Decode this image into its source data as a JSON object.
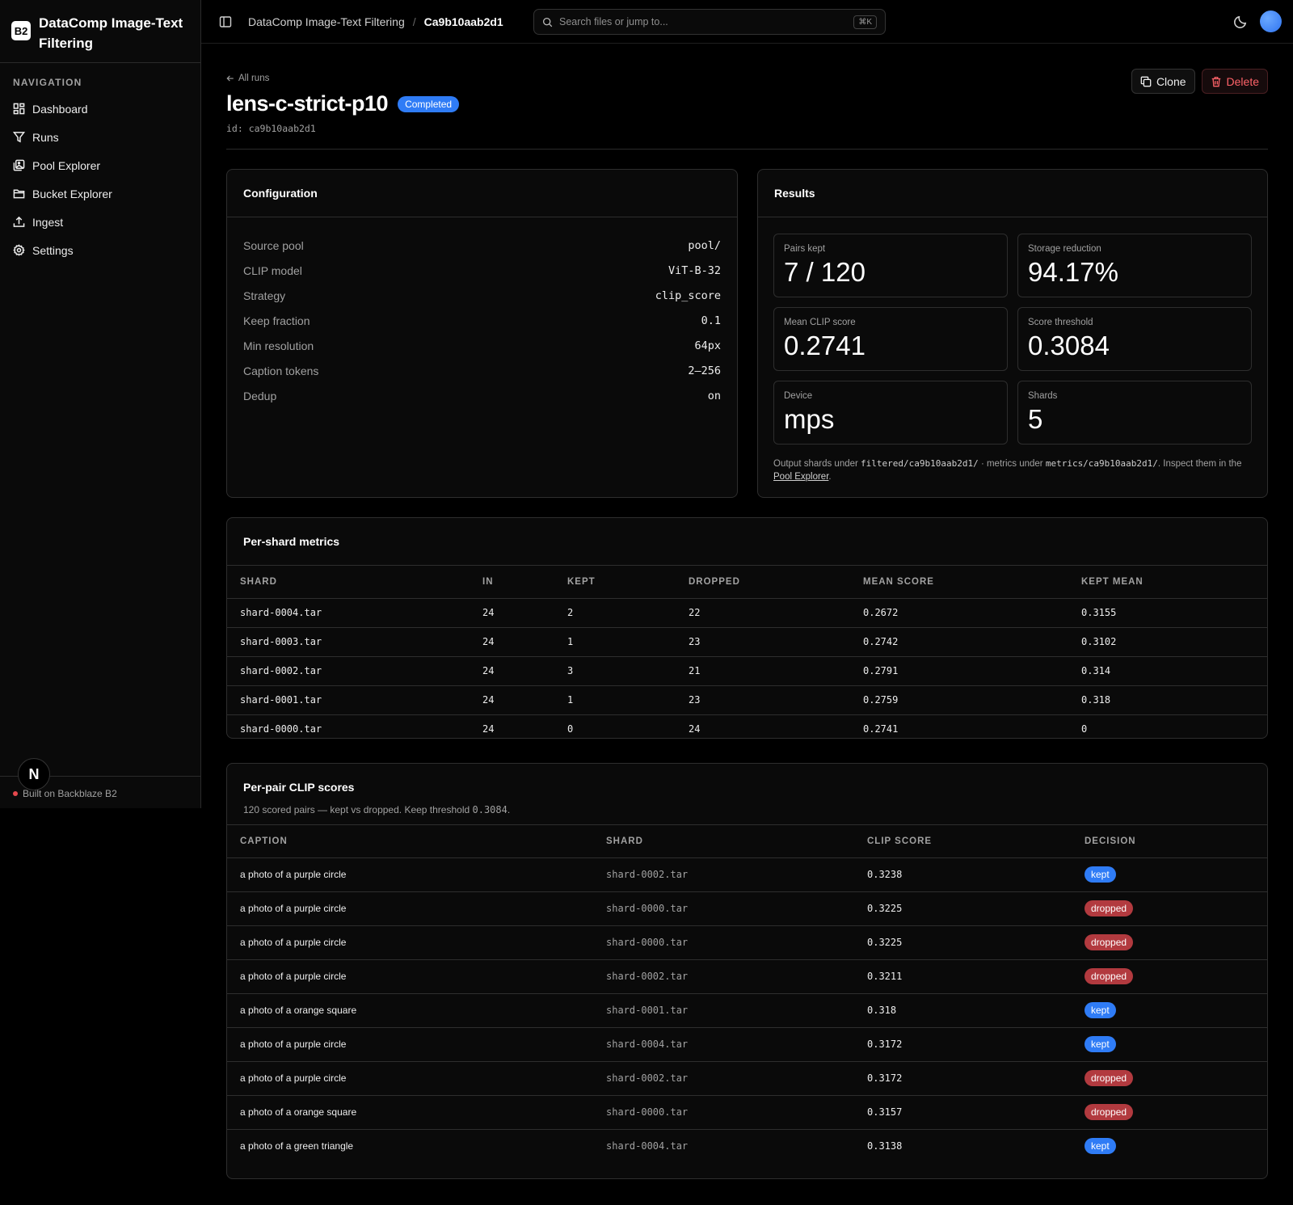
{
  "app": {
    "logo_text": "B2",
    "title": "DataComp Image-Text Filtering"
  },
  "sidebar": {
    "heading": "NAVIGATION",
    "items": [
      {
        "label": "Dashboard",
        "icon": "dashboard-icon"
      },
      {
        "label": "Runs",
        "icon": "filter-icon"
      },
      {
        "label": "Pool Explorer",
        "icon": "images-icon"
      },
      {
        "label": "Bucket Explorer",
        "icon": "folder-icon"
      },
      {
        "label": "Ingest",
        "icon": "upload-icon"
      },
      {
        "label": "Settings",
        "icon": "gear-icon"
      }
    ],
    "footer": "Built on Backblaze B2",
    "n_badge": "N"
  },
  "topbar": {
    "breadcrumb_root": "DataComp Image-Text Filtering",
    "breadcrumb_sep": "/",
    "breadcrumb_current": "Ca9b10aab2d1",
    "search_placeholder": "Search files or jump to...",
    "search_shortcut": "⌘K"
  },
  "run": {
    "back_label": "All runs",
    "name": "lens-c-strict-p10",
    "status": "Completed",
    "id_label": "id: ca9b10aab2d1",
    "clone_label": "Clone",
    "delete_label": "Delete"
  },
  "configuration": {
    "title": "Configuration",
    "rows": [
      {
        "key": "Source pool",
        "value": "pool/"
      },
      {
        "key": "CLIP model",
        "value": "ViT-B-32"
      },
      {
        "key": "Strategy",
        "value": "clip_score"
      },
      {
        "key": "Keep fraction",
        "value": "0.1"
      },
      {
        "key": "Min resolution",
        "value": "64px"
      },
      {
        "key": "Caption tokens",
        "value": "2–256"
      },
      {
        "key": "Dedup",
        "value": "on"
      }
    ]
  },
  "results": {
    "title": "Results",
    "stats": [
      {
        "label": "Pairs kept",
        "value": "7 / 120"
      },
      {
        "label": "Storage reduction",
        "value": "94.17%"
      },
      {
        "label": "Mean CLIP score",
        "value": "0.2741"
      },
      {
        "label": "Score threshold",
        "value": "0.3084"
      },
      {
        "label": "Device",
        "value": "mps"
      },
      {
        "label": "Shards",
        "value": "5"
      }
    ],
    "note_1": "Output shards under ",
    "note_path_1": "filtered/ca9b10aab2d1/",
    "note_2": " · metrics under ",
    "note_path_2": "metrics/ca9b10aab2d1/",
    "note_3": ". Inspect them in the ",
    "note_link": "Pool Explorer",
    "note_4": "."
  },
  "shard_metrics": {
    "title": "Per-shard metrics",
    "columns": [
      "SHARD",
      "IN",
      "KEPT",
      "DROPPED",
      "MEAN SCORE",
      "KEPT MEAN"
    ],
    "rows": [
      [
        "shard-0004.tar",
        "24",
        "2",
        "22",
        "0.2672",
        "0.3155"
      ],
      [
        "shard-0003.tar",
        "24",
        "1",
        "23",
        "0.2742",
        "0.3102"
      ],
      [
        "shard-0002.tar",
        "24",
        "3",
        "21",
        "0.2791",
        "0.314"
      ],
      [
        "shard-0001.tar",
        "24",
        "1",
        "23",
        "0.2759",
        "0.318"
      ],
      [
        "shard-0000.tar",
        "24",
        "0",
        "24",
        "0.2741",
        "0"
      ]
    ]
  },
  "pair_scores": {
    "title": "Per-pair CLIP scores",
    "subtitle_prefix": "120 scored pairs — kept vs dropped. Keep threshold ",
    "subtitle_value": "0.3084",
    "subtitle_suffix": ".",
    "columns": [
      "CAPTION",
      "SHARD",
      "CLIP SCORE",
      "DECISION"
    ],
    "rows": [
      [
        "a photo of a purple circle",
        "shard-0002.tar",
        "0.3238",
        "kept"
      ],
      [
        "a photo of a purple circle",
        "shard-0000.tar",
        "0.3225",
        "dropped"
      ],
      [
        "a photo of a purple circle",
        "shard-0000.tar",
        "0.3225",
        "dropped"
      ],
      [
        "a photo of a purple circle",
        "shard-0002.tar",
        "0.3211",
        "dropped"
      ],
      [
        "a photo of a orange square",
        "shard-0001.tar",
        "0.318",
        "kept"
      ],
      [
        "a photo of a purple circle",
        "shard-0004.tar",
        "0.3172",
        "kept"
      ],
      [
        "a photo of a purple circle",
        "shard-0002.tar",
        "0.3172",
        "dropped"
      ],
      [
        "a photo of a orange square",
        "shard-0000.tar",
        "0.3157",
        "dropped"
      ],
      [
        "a photo of a green triangle",
        "shard-0004.tar",
        "0.3138",
        "kept"
      ]
    ]
  }
}
